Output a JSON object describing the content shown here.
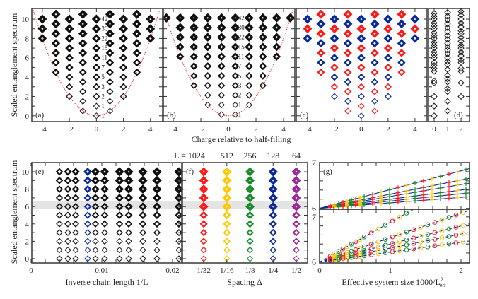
{
  "colors": {
    "red": "#ff1a1a",
    "blue": "#0a2a9a",
    "gold": "#ffc800",
    "green": "#1a8a2a",
    "purple": "#9a2a9a",
    "black": "#111111",
    "band": "#e4e4e4",
    "parabola": "#ff3030"
  },
  "labels": {
    "ylabel_top": "Scaled entanglement spectrum",
    "ylabel_bottom": "Scaled entanglement spectrum",
    "xlabel_top": "Charge relative to half-filling",
    "xlabel_e": "Inverse chain length 1/L",
    "xlabel_f": "Spacing Δ",
    "xlabel_g": "Effective system size 1000/L",
    "xlabel_g_sup": "2",
    "xlabel_g_sub": "eff"
  },
  "chart_data": [
    {
      "panel": "(a)",
      "type": "scatter",
      "marker": "diamond",
      "xlim": [
        -4.78,
        4.9
      ],
      "ylim": [
        -0.6,
        11.1
      ],
      "xticks": [
        "−4",
        "−2",
        "0",
        "2",
        "4"
      ],
      "xtick_values": [
        -4,
        -2,
        0,
        2,
        4
      ],
      "yticks": [
        "0",
        "2",
        "4",
        "6",
        "8",
        "10"
      ],
      "ytick_values": [
        0,
        2,
        4,
        6,
        8,
        10
      ],
      "parabola": "y = x^2/2",
      "columns": [
        {
          "x": -4,
          "y": [
            8,
            9,
            10
          ]
        },
        {
          "x": -3,
          "y": [
            4.5,
            5.5,
            6.5,
            7.5,
            8.5,
            9.5,
            10.5
          ]
        },
        {
          "x": -2,
          "y": [
            2,
            3,
            4,
            5,
            6,
            7,
            8,
            9,
            10
          ]
        },
        {
          "x": -1,
          "y": [
            0.5,
            1.5,
            2.5,
            3.5,
            4.5,
            5.5,
            6.5,
            7.5,
            8.5,
            9.5,
            10.5
          ]
        },
        {
          "x": 0,
          "y": [
            0,
            1,
            2,
            3,
            4,
            5,
            6,
            7,
            8,
            9,
            10
          ]
        },
        {
          "x": 1,
          "y": [
            0.5,
            1.5,
            2.5,
            3.5,
            4.5,
            5.5,
            6.5,
            7.5,
            8.5,
            9.5,
            10.5
          ]
        },
        {
          "x": 2,
          "y": [
            2,
            3,
            4,
            5,
            6,
            7,
            8,
            9,
            10
          ]
        },
        {
          "x": 3,
          "y": [
            4.5,
            5.5,
            6.5,
            7.5,
            8.5,
            9.5,
            10.5
          ]
        },
        {
          "x": 4,
          "y": [
            8,
            9,
            10
          ]
        }
      ],
      "degeneracy_labels": {
        "x": 0,
        "y": [
          0,
          1,
          2,
          3,
          4,
          5,
          6,
          7,
          8,
          9,
          10
        ],
        "text": [
          "1",
          "1",
          "2",
          "3",
          "5",
          "7",
          "11",
          "15",
          "22",
          "30",
          "42"
        ]
      }
    },
    {
      "panel": "(b)",
      "type": "scatter",
      "marker": "diamond",
      "xlim": [
        -4.72,
        4.82
      ],
      "ylim": [
        -0.6,
        11.1
      ],
      "xticks": [
        "−4",
        "−2",
        "0",
        "2",
        "4"
      ],
      "xtick_values": [
        -4,
        -2,
        0,
        2,
        4
      ],
      "parabola": "y = x^2/2",
      "columns": [
        {
          "x": -4.5,
          "y": [
            10.125
          ]
        },
        {
          "x": -3.5,
          "y": [
            6.125,
            7.125,
            8.125,
            9.125,
            10.125
          ]
        },
        {
          "x": -2.5,
          "y": [
            3.125,
            4.125,
            5.125,
            6.125,
            7.125,
            8.125,
            9.125,
            10.125
          ]
        },
        {
          "x": -1.5,
          "y": [
            1.125,
            2.125,
            3.125,
            4.125,
            5.125,
            6.125,
            7.125,
            8.125,
            9.125,
            10.125
          ]
        },
        {
          "x": -0.5,
          "y": [
            0.125,
            1.125,
            2.125,
            3.125,
            4.125,
            5.125,
            6.125,
            7.125,
            8.125,
            9.125,
            10.125
          ]
        },
        {
          "x": 0.5,
          "y": [
            0.125,
            1.125,
            2.125,
            3.125,
            4.125,
            5.125,
            6.125,
            7.125,
            8.125,
            9.125,
            10.125
          ]
        },
        {
          "x": 1.5,
          "y": [
            1.125,
            2.125,
            3.125,
            4.125,
            5.125,
            6.125,
            7.125,
            8.125,
            9.125,
            10.125
          ]
        },
        {
          "x": 2.5,
          "y": [
            3.125,
            4.125,
            5.125,
            6.125,
            7.125,
            8.125,
            9.125,
            10.125
          ]
        },
        {
          "x": 3.5,
          "y": [
            6.125,
            7.125,
            8.125,
            9.125,
            10.125
          ]
        },
        {
          "x": 4.5,
          "y": [
            10.125
          ]
        }
      ],
      "degeneracy_labels": {
        "x": 0.5,
        "y": [
          0.125,
          1.125,
          2.125,
          3.125,
          4.125,
          5.125,
          6.125,
          7.125,
          8.125,
          9.125,
          10.125
        ],
        "text": [
          "1",
          "1",
          "2",
          "3",
          "5",
          "7",
          "11",
          "15",
          "22",
          "30",
          "42"
        ]
      }
    },
    {
      "panel": "(c)",
      "type": "scatter",
      "marker": "diamond",
      "xlim": [
        -4.84,
        4.9
      ],
      "ylim": [
        -0.6,
        11.1
      ],
      "xticks": [
        "−4",
        "−2",
        "0",
        "2",
        "4"
      ],
      "xtick_values": [
        -4,
        -2,
        0,
        2,
        4
      ],
      "series_colors": [
        "blue",
        "red"
      ],
      "columns": [
        {
          "x": -4,
          "y": [
            8,
            9,
            10
          ]
        },
        {
          "x": -3,
          "y": [
            4.5,
            5.5,
            6.5,
            7.5,
            8.5,
            9.5,
            10.5
          ]
        },
        {
          "x": -2,
          "y": [
            2,
            3,
            4,
            5,
            6,
            7,
            8,
            9,
            10
          ]
        },
        {
          "x": -1,
          "y": [
            0.5,
            1.5,
            2.5,
            3.5,
            4.5,
            5.5,
            6.5,
            7.5,
            8.5,
            9.5,
            10.5
          ]
        },
        {
          "x": 0,
          "y": [
            0,
            1,
            2,
            3,
            4,
            5,
            6,
            7,
            8,
            9,
            10
          ]
        },
        {
          "x": 1,
          "y": [
            0.5,
            1.5,
            2.5,
            3.5,
            4.5,
            5.5,
            6.5,
            7.5,
            8.5,
            9.5,
            10.5
          ]
        },
        {
          "x": 2,
          "y": [
            2,
            3,
            4,
            5,
            6,
            7,
            8,
            9,
            10
          ]
        },
        {
          "x": 3,
          "y": [
            4.5,
            5.5,
            6.5,
            7.5,
            8.5,
            9.5,
            10.5
          ]
        },
        {
          "x": 4,
          "y": [
            8,
            9,
            10
          ]
        }
      ]
    },
    {
      "panel": "(d)",
      "type": "scatter",
      "marker": "diamond",
      "xlim": [
        -0.42,
        2.63
      ],
      "ylim": [
        -0.6,
        11.1
      ],
      "xticks": [
        "0",
        "1",
        "2"
      ],
      "xtick_values": [
        0,
        1,
        2
      ],
      "columns": [
        {
          "x": 0,
          "y": [
            0,
            1,
            2,
            3.4,
            3.6,
            4.6,
            4.9,
            5.2,
            5.5,
            6.0,
            6.3,
            6.6,
            7.0,
            7.3,
            7.6,
            8.0,
            8.3,
            8.6,
            9.0,
            9.3,
            9.6,
            10.0,
            10.3,
            10.6
          ]
        },
        {
          "x": 1,
          "y": [
            0.5,
            1.5,
            2.5,
            2.8,
            3.5,
            3.8,
            4.2,
            4.8,
            5.3,
            5.6,
            6.0,
            6.4,
            6.8,
            7.1,
            7.5,
            7.9,
            8.3,
            8.7,
            9.1,
            9.5,
            9.9,
            10.3,
            10.7
          ]
        },
        {
          "x": 2,
          "y": [
            2.0,
            3.4,
            4.6,
            4.9,
            5.5,
            5.8,
            6.2,
            6.6,
            7.0,
            7.3,
            7.7,
            8.1,
            8.5,
            8.8,
            9.2,
            9.6,
            10.0,
            10.4,
            10.8
          ]
        }
      ]
    },
    {
      "panel": "(e)",
      "type": "scatter",
      "marker": "diamond",
      "xlim": [
        0.0001,
        0.0213
      ],
      "ylim": [
        -0.49,
        11.06
      ],
      "xticks": [
        "0",
        "0.01",
        "0.02"
      ],
      "xtick_values": [
        0,
        0.01,
        0.02
      ],
      "yticks": [
        "0",
        "2",
        "4",
        "6",
        "8",
        "10"
      ],
      "ytick_values": [
        0,
        2,
        4,
        6,
        8,
        10
      ],
      "band": [
        5.7,
        6.6
      ],
      "columns_x": [
        0.004,
        0.0052,
        0.0063,
        0.008,
        0.0091,
        0.0104,
        0.0125,
        0.0138,
        0.0158,
        0.0178,
        0.0209
      ],
      "highlight_x": 0.008,
      "levels": [
        0,
        1,
        2,
        3,
        4,
        5,
        6,
        7,
        8,
        9,
        10
      ]
    },
    {
      "panel": "(f)",
      "type": "scatter",
      "marker": "diamond",
      "xlim": [
        0.08,
        5.49
      ],
      "ylim": [
        -0.49,
        11.06
      ],
      "band": [
        5.7,
        6.6
      ],
      "categories": [
        "1/32",
        "1/16",
        "1/8",
        "1/4",
        "1/2"
      ],
      "top_labels": [
        "L = 1024",
        "512",
        "256",
        "128",
        "64"
      ],
      "category_colors": [
        "red",
        "gold",
        "green",
        "blue",
        "purple"
      ],
      "levels": [
        0,
        1,
        2,
        3,
        4,
        5,
        6,
        7,
        8,
        9,
        10
      ]
    },
    {
      "panel": "(g)",
      "type": "line",
      "xlim": [
        0,
        2.12
      ],
      "xticks": [
        "0",
        "1",
        "2"
      ],
      "xtick_values": [
        0,
        1,
        2
      ],
      "top": {
        "ylim": [
          5.98,
          7.0
        ],
        "yticks": [
          "7",
          "6"
        ],
        "ytick_values": [
          7,
          6
        ],
        "marker": "plus",
        "line_style": "solid",
        "intercept": 6,
        "slopes": [
          0.41,
          0.31,
          0.26,
          0.2,
          0.16,
          0.12
        ]
      },
      "bottom": {
        "ylim": [
          5.98,
          7.17
        ],
        "yticks": [
          "7",
          "6"
        ],
        "ytick_values": [
          7,
          6
        ],
        "marker": "circle",
        "line_style": "dashed",
        "intercept": 6,
        "slopes": [
          0.88,
          0.54,
          0.4,
          0.31,
          0.22
        ]
      },
      "marker_colors": [
        "red",
        "gold",
        "green"
      ]
    }
  ]
}
